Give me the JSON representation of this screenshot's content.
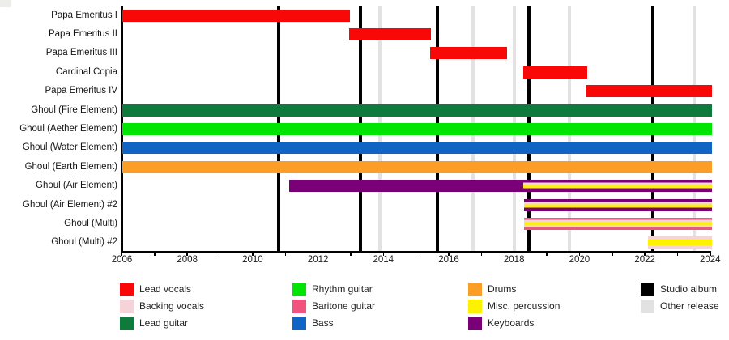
{
  "chart_data": {
    "type": "bar",
    "variant": "horizontal-timeline-gantt",
    "title": "",
    "xlabel": "",
    "ylabel": "",
    "x_axis": {
      "min": 2006,
      "max": 2024.05,
      "tick_every_years": 1,
      "label_every_years": 2,
      "tick_labels": [
        "2006",
        "2008",
        "2010",
        "2012",
        "2014",
        "2016",
        "2018",
        "2020",
        "2022",
        "2024"
      ]
    },
    "colors": {
      "lead_vocals": "#f90808",
      "backing_vocals": "#f5d3d8",
      "lead_guitar": "#0e7a3c",
      "rhythm_guitar": "#00e504",
      "baritone_guitar": "#f0537d",
      "bass": "#0f64c4",
      "drums": "#fb9d27",
      "misc_percussion": "#fdf300",
      "keyboards": "#7a0078",
      "studio_album": "#000000",
      "other_release": "#e2e2e2"
    },
    "rows": [
      {
        "label": "Papa Emeritus I",
        "segments": [
          {
            "start": 2006.0,
            "end": 2012.98,
            "role": "lead_vocals"
          }
        ]
      },
      {
        "label": "Papa Emeritus II",
        "segments": [
          {
            "start": 2012.95,
            "end": 2015.45,
            "role": "lead_vocals"
          }
        ]
      },
      {
        "label": "Papa Emeritus III",
        "segments": [
          {
            "start": 2015.42,
            "end": 2017.78,
            "role": "lead_vocals"
          }
        ]
      },
      {
        "label": "Cardinal Copia",
        "segments": [
          {
            "start": 2018.28,
            "end": 2020.25,
            "role": "lead_vocals"
          }
        ]
      },
      {
        "label": "Papa Emeritus IV",
        "segments": [
          {
            "start": 2020.2,
            "end": 2024.05,
            "role": "lead_vocals"
          }
        ]
      },
      {
        "label": "Ghoul (Fire Element)",
        "segments": [
          {
            "start": 2006.0,
            "end": 2024.05,
            "role": "lead_guitar"
          }
        ]
      },
      {
        "label": "Ghoul (Aether Element)",
        "segments": [
          {
            "start": 2006.0,
            "end": 2024.05,
            "role": "rhythm_guitar"
          }
        ]
      },
      {
        "label": "Ghoul (Water Element)",
        "segments": [
          {
            "start": 2006.0,
            "end": 2024.05,
            "role": "bass"
          }
        ]
      },
      {
        "label": "Ghoul (Earth Element)",
        "segments": [
          {
            "start": 2006.0,
            "end": 2024.05,
            "role": "drums"
          }
        ]
      },
      {
        "label": "Ghoul (Air Element)",
        "segments": [
          {
            "start": 2011.12,
            "end": 2018.28,
            "role": "keyboards"
          },
          {
            "start": 2018.28,
            "end": 2024.05,
            "stripes": [
              [
                "keyboards",
                24
              ],
              [
                "backing_vocals",
                18
              ],
              [
                "misc_percussion",
                28
              ],
              [
                "keyboards",
                30
              ]
            ]
          }
        ]
      },
      {
        "label": "Ghoul (Air Element) #2",
        "segments": [
          {
            "start": 2018.3,
            "end": 2024.05,
            "stripes": [
              [
                "keyboards",
                24
              ],
              [
                "backing_vocals",
                18
              ],
              [
                "misc_percussion",
                28
              ],
              [
                "keyboards",
                30
              ]
            ]
          }
        ]
      },
      {
        "label": "Ghoul (Multi)",
        "segments": [
          {
            "start": 2018.3,
            "end": 2024.05,
            "stripes": [
              [
                "baritone_guitar",
                16
              ],
              [
                "backing_vocals",
                20
              ],
              [
                "misc_percussion",
                28
              ],
              [
                "backing_vocals",
                14
              ],
              [
                "baritone_guitar",
                22
              ]
            ]
          }
        ]
      },
      {
        "label": "Ghoul (Multi) #2",
        "segments": [
          {
            "start": 2022.1,
            "end": 2024.05,
            "stripes": [
              [
                "backing_vocals",
                26
              ],
              [
                "misc_percussion",
                48
              ],
              [
                "backing_vocals",
                26
              ]
            ]
          }
        ]
      }
    ],
    "event_lines": {
      "studio_albums": [
        2010.8,
        2013.3,
        2015.65,
        2018.45,
        2022.25
      ],
      "other_releases": [
        2013.9,
        2016.75,
        2018.0,
        2019.7,
        2023.5
      ]
    },
    "legend": {
      "position": "bottom",
      "columns": [
        [
          {
            "label": "Lead vocals",
            "color_key": "lead_vocals"
          },
          {
            "label": "Backing vocals",
            "color_key": "backing_vocals"
          },
          {
            "label": "Lead guitar",
            "color_key": "lead_guitar"
          }
        ],
        [
          {
            "label": "Rhythm guitar",
            "color_key": "rhythm_guitar"
          },
          {
            "label": "Baritone guitar",
            "color_key": "baritone_guitar"
          },
          {
            "label": "Bass",
            "color_key": "bass"
          }
        ],
        [
          {
            "label": "Drums",
            "color_key": "drums"
          },
          {
            "label": "Misc. percussion",
            "color_key": "misc_percussion"
          },
          {
            "label": "Keyboards",
            "color_key": "keyboards"
          }
        ],
        [
          {
            "label": "Studio album",
            "color_key": "studio_album"
          },
          {
            "label": "Other release",
            "color_key": "other_release"
          }
        ]
      ]
    }
  }
}
